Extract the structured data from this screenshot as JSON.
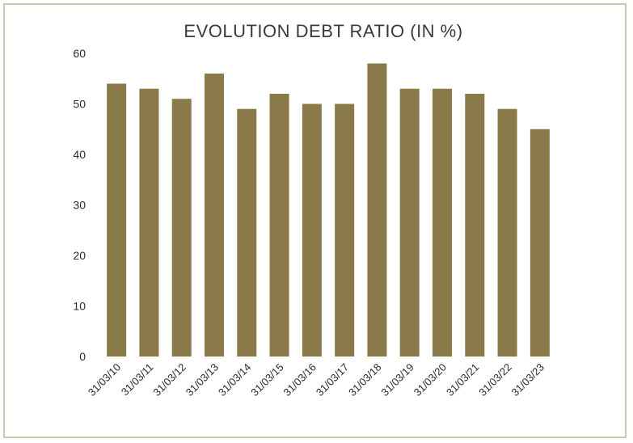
{
  "chart_data": {
    "type": "bar",
    "title": "EVOLUTION DEBT RATIO (IN %)",
    "categories": [
      "31/03/10",
      "31/03/11",
      "31/03/12",
      "31/03/13",
      "31/03/14",
      "31/03/15",
      "31/03/16",
      "31/03/17",
      "31/03/18",
      "31/03/19",
      "31/03/20",
      "31/03/21",
      "31/03/22",
      "31/03/23"
    ],
    "values": [
      54,
      53,
      51,
      56,
      49,
      52,
      50,
      50,
      58,
      53,
      53,
      52,
      49,
      45
    ],
    "ylim": [
      0,
      60
    ],
    "yticks": [
      0,
      10,
      20,
      30,
      40,
      50,
      60
    ],
    "grid": false,
    "legend": "none",
    "bar_color": "#8a7a4a"
  }
}
